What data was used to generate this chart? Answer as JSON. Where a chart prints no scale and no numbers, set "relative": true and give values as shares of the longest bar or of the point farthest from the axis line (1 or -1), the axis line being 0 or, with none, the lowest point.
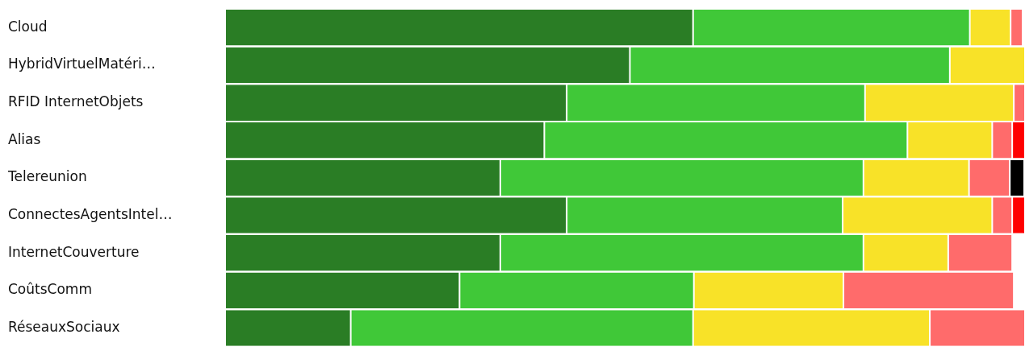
{
  "chart_data": {
    "type": "bar",
    "orientation": "horizontal",
    "stacked": true,
    "relative": true,
    "legend": false,
    "categories": [
      "Cloud",
      "HybridVirtuelMatéri…",
      "RFID InternetObjets",
      "Alias",
      "Telereunion",
      "ConnectesAgentsIntel…",
      "InternetCouverture",
      "CoûtsComm",
      "RéseauxSociaux"
    ],
    "series": [
      {
        "color": "#2a7d25",
        "values": [
          0.585,
          0.506,
          0.427,
          0.399,
          0.344,
          0.427,
          0.344,
          0.293,
          0.157
        ]
      },
      {
        "color": "#40c838",
        "values": [
          0.346,
          0.4,
          0.373,
          0.454,
          0.454,
          0.345,
          0.454,
          0.293,
          0.428
        ]
      },
      {
        "color": "#f8e228",
        "values": [
          0.051,
          0.094,
          0.186,
          0.106,
          0.132,
          0.187,
          0.106,
          0.187,
          0.296
        ]
      },
      {
        "color": "#ff6b6b",
        "values": [
          0.015,
          null,
          0.014,
          0.025,
          0.051,
          0.025,
          0.08,
          0.213,
          0.119
        ]
      },
      {
        "color": "#ff0000",
        "values": [
          null,
          null,
          null,
          0.016,
          null,
          0.016,
          null,
          null,
          null
        ]
      },
      {
        "color": "#000000",
        "values": [
          null,
          null,
          null,
          null,
          0.018,
          null,
          null,
          null,
          null
        ]
      }
    ]
  }
}
